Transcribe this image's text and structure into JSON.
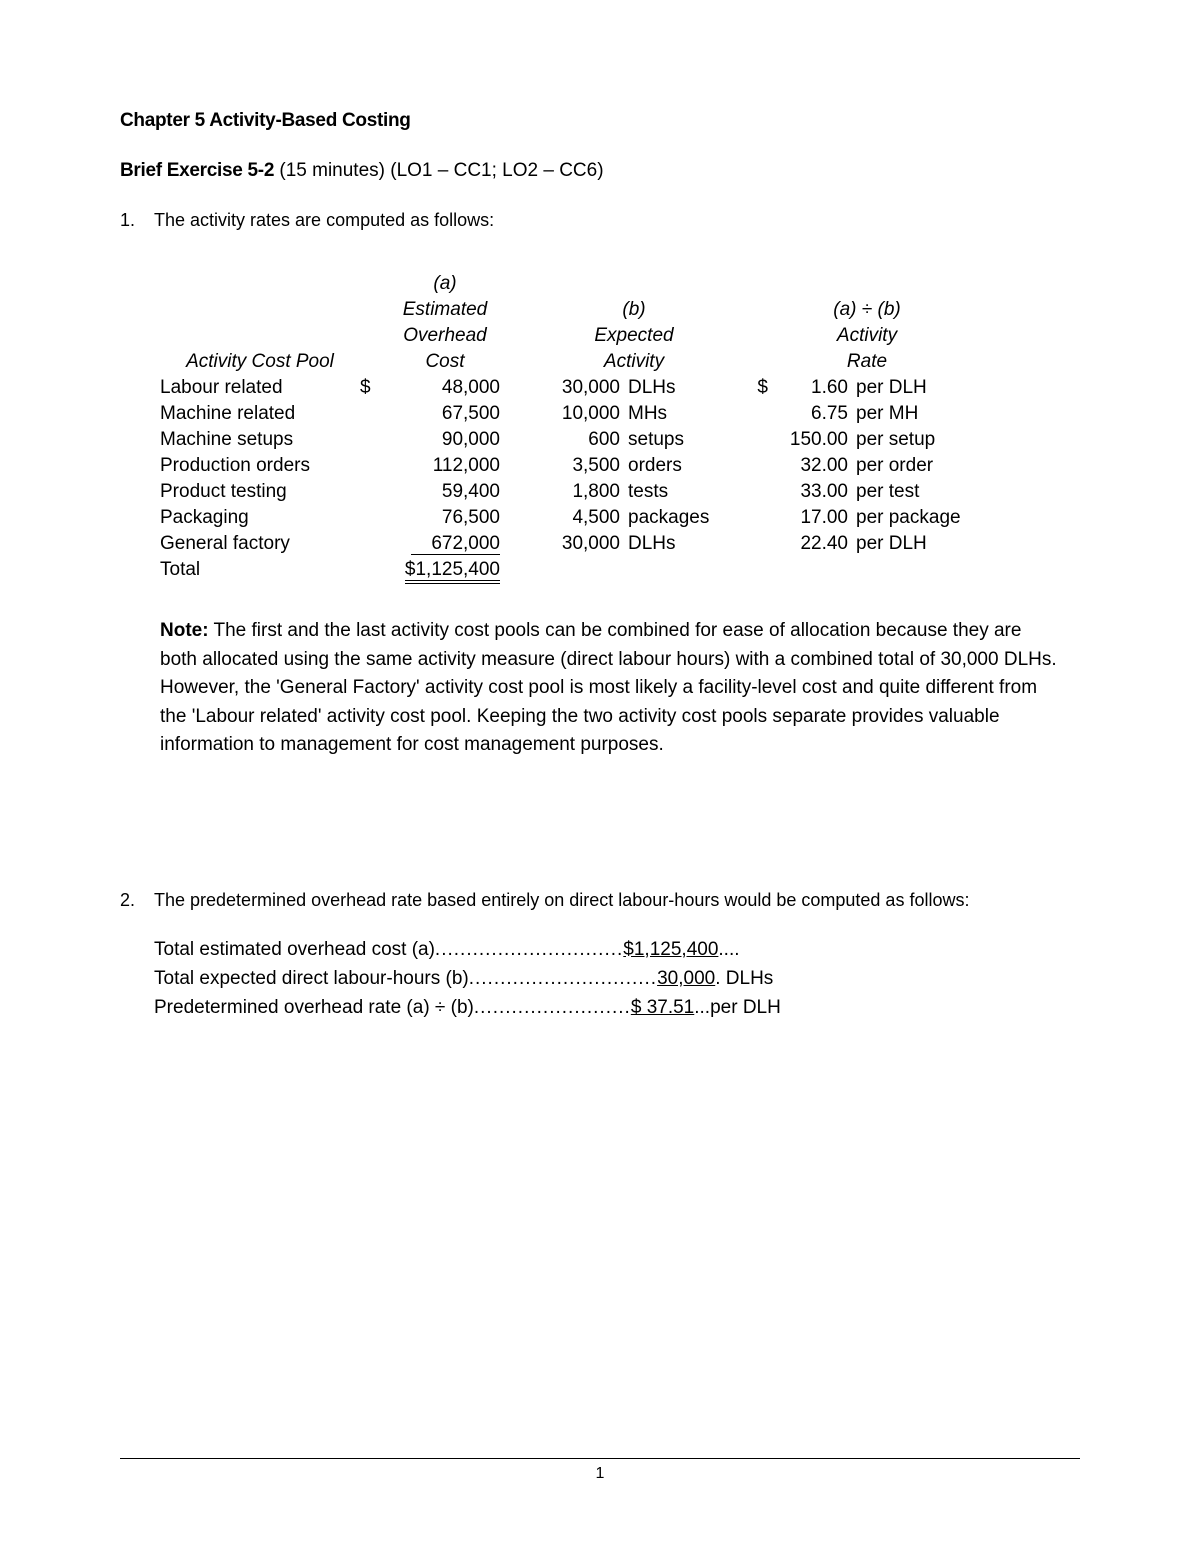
{
  "chapter_title": "Chapter 5 Activity-Based Costing",
  "exercise": {
    "label": "Brief Exercise 5-2",
    "detail": " (15 minutes) (LO1 – CC1; LO2 – CC6)"
  },
  "q1": {
    "num": "1.",
    "text": "The activity rates are computed as follows:"
  },
  "table": {
    "hdr_a": "(a)",
    "hdr_est": "Estimated",
    "hdr_oh": "Overhead",
    "hdr_cost": "Cost",
    "hdr_b": "(b)",
    "hdr_exp": "Expected",
    "hdr_act": "Activity",
    "hdr_adiv": "(a) ÷ (b)",
    "hdr_activity": "Activity",
    "hdr_rate": "Rate",
    "hdr_pool": "Activity Cost Pool",
    "rows": [
      {
        "pool": "Labour related",
        "cur": "$",
        "cost": "48,000",
        "actn": "30,000",
        "actu": "DLHs",
        "rcur": "$",
        "rate": "1.60",
        "per": "per DLH"
      },
      {
        "pool": "Machine related",
        "cur": "",
        "cost": "67,500",
        "actn": "10,000",
        "actu": "MHs",
        "rcur": "",
        "rate": "6.75",
        "per": "per MH"
      },
      {
        "pool": "Machine setups",
        "cur": "",
        "cost": "90,000",
        "actn": "600",
        "actu": "setups",
        "rcur": "",
        "rate": "150.00",
        "per": "per setup"
      },
      {
        "pool": "Production orders",
        "cur": "",
        "cost": "112,000",
        "actn": "3,500",
        "actu": "orders",
        "rcur": "",
        "rate": "32.00",
        "per": "per order"
      },
      {
        "pool": "Product testing",
        "cur": "",
        "cost": "59,400",
        "actn": "1,800",
        "actu": "tests",
        "rcur": "",
        "rate": "33.00",
        "per": "per test"
      },
      {
        "pool": "Packaging",
        "cur": "",
        "cost": "76,500",
        "actn": "4,500",
        "actu": "packages",
        "rcur": "",
        "rate": "17.00",
        "per": "per package"
      },
      {
        "pool": "General factory",
        "cur": "",
        "cost": "672,000",
        "actn": "30,000",
        "actu": "DLHs",
        "rcur": "",
        "rate": "22.40",
        "per": "per DLH"
      }
    ],
    "total_label": "Total",
    "total_value": "$1,125,400"
  },
  "note": {
    "label": "Note:",
    "text": " The first and the last activity cost pools can be combined for ease of allocation because they are both allocated using the same activity measure (direct labour hours) with a combined total of 30,000 DLHs. However, the 'General Factory' activity cost pool is most likely a facility-level cost and quite different from the 'Labour related' activity cost pool.  Keeping the two activity cost pools separate provides valuable information to management for cost management purposes."
  },
  "q2": {
    "num": "2.",
    "text": "The predetermined overhead rate based entirely on direct labour-hours would be computed as follows:",
    "calc": [
      {
        "label": "Total estimated overhead cost (a)",
        "dots": "..............................",
        "val_pre": "",
        "val_u": "$1,125,400",
        "val_post": "...."
      },
      {
        "label": "Total expected direct labour-hours (b)",
        "dots": "..............................",
        "val_pre": "",
        "val_u": "30,000",
        "val_post": ". DLHs"
      },
      {
        "label": "Predetermined overhead rate (a) ÷ (b)",
        "dots": ".........................",
        "val_pre": "",
        "val_u": "$      37.51",
        "val_post": "...per DLH"
      }
    ]
  },
  "page_number": "1"
}
